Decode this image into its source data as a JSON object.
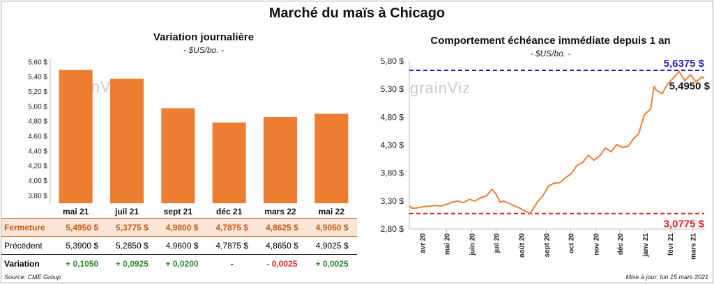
{
  "title": "Marché du maïs à Chicago",
  "left": {
    "subtitle": "Variation journalière",
    "unit": "- $US/bo. -",
    "bar_color": "#ed7d31",
    "ytick_labels": [
      "3,80 $",
      "4,00 $",
      "4,20 $",
      "4,40 $",
      "4,60 $",
      "4,80 $",
      "5,00 $",
      "5,20 $",
      "5,40 $",
      "5,60 $"
    ],
    "table": {
      "row_labels": {
        "close": "Fermeture",
        "prev": "Précédent",
        "var": "Variation"
      },
      "close": [
        "5,4950 $",
        "5,3775 $",
        "4,9800 $",
        "4,7875 $",
        "4,8625 $",
        "4,9050 $"
      ],
      "prev": [
        "5,3900 $",
        "5,2850 $",
        "4,9600 $",
        "4,7875 $",
        "4,8650 $",
        "4,9025 $"
      ],
      "var": [
        "+ 0,1050",
        "+ 0,0925",
        "+ 0,0200",
        "-",
        "- 0,0025",
        "+ 0,0025"
      ],
      "var_sign": [
        "pos",
        "pos",
        "pos",
        "zero",
        "neg",
        "pos"
      ]
    }
  },
  "right": {
    "subtitle": "Comportement  échéance immédiate depuis 1 an",
    "unit": "- $US/bo. -",
    "line_color": "#ed7d31",
    "high_label": "5,6375 $",
    "low_label": "3,0775 $",
    "last_label": "5,4950 $",
    "high_color": "#2020c0",
    "low_color": "#e02020",
    "ytick_labels": [
      "2,80 $",
      "3,30 $",
      "3,80 $",
      "4,30 $",
      "4,80 $",
      "5,30 $",
      "5,80 $"
    ],
    "xtick_labels": [
      "avr 20",
      "mai 20",
      "juin 20",
      "juil 20",
      "août 20",
      "sept 20",
      "oct 20",
      "nov 20",
      "déc 20",
      "janv 21",
      "févr 21",
      "mars 21"
    ]
  },
  "watermark": "grainViz",
  "footer": {
    "source": "Source: CME Group",
    "updated": "Mise à jour: lun 15 mars 2021"
  },
  "chart_data": [
    {
      "type": "bar",
      "title": "Variation journalière",
      "categories": [
        "mai 21",
        "juil 21",
        "sept 21",
        "déc 21",
        "mars 22",
        "mai 22"
      ],
      "values": [
        5.495,
        5.3775,
        4.98,
        4.7875,
        4.8625,
        4.905
      ],
      "ylim": [
        3.7,
        5.65
      ],
      "yticks": [
        3.8,
        4.0,
        4.2,
        4.4,
        4.6,
        4.8,
        5.0,
        5.2,
        5.4,
        5.6
      ],
      "grid": false
    },
    {
      "type": "line",
      "title": "Comportement  échéance immédiate depuis 1 an",
      "x": [
        "2020-03-16",
        "2020-03-20",
        "2020-03-27",
        "2020-04-03",
        "2020-04-10",
        "2020-04-17",
        "2020-04-24",
        "2020-05-01",
        "2020-05-08",
        "2020-05-15",
        "2020-05-22",
        "2020-05-29",
        "2020-06-05",
        "2020-06-12",
        "2020-06-19",
        "2020-06-26",
        "2020-07-01",
        "2020-07-06",
        "2020-07-10",
        "2020-07-17",
        "2020-07-24",
        "2020-07-31",
        "2020-08-07",
        "2020-08-12",
        "2020-08-14",
        "2020-08-21",
        "2020-08-28",
        "2020-09-04",
        "2020-09-11",
        "2020-09-18",
        "2020-09-25",
        "2020-10-02",
        "2020-10-09",
        "2020-10-16",
        "2020-10-23",
        "2020-10-30",
        "2020-11-06",
        "2020-11-13",
        "2020-11-20",
        "2020-11-27",
        "2020-12-04",
        "2020-12-11",
        "2020-12-18",
        "2020-12-24",
        "2020-12-31",
        "2021-01-08",
        "2021-01-12",
        "2021-01-15",
        "2021-01-22",
        "2021-01-29",
        "2021-02-05",
        "2021-02-12",
        "2021-02-19",
        "2021-02-26",
        "2021-03-05",
        "2021-03-12",
        "2021-03-15"
      ],
      "values": [
        3.21,
        3.17,
        3.18,
        3.2,
        3.21,
        3.22,
        3.21,
        3.24,
        3.28,
        3.3,
        3.27,
        3.33,
        3.3,
        3.36,
        3.39,
        3.51,
        3.43,
        3.28,
        3.3,
        3.26,
        3.21,
        3.17,
        3.11,
        3.08,
        3.12,
        3.28,
        3.4,
        3.57,
        3.62,
        3.63,
        3.72,
        3.79,
        3.94,
        3.99,
        4.12,
        4.03,
        4.11,
        4.25,
        4.18,
        4.31,
        4.26,
        4.28,
        4.42,
        4.5,
        4.84,
        4.95,
        5.35,
        5.28,
        5.22,
        5.4,
        5.5,
        5.62,
        5.45,
        5.56,
        5.43,
        5.52,
        5.495
      ],
      "ylim": [
        2.8,
        5.8
      ],
      "yticks": [
        2.8,
        3.3,
        3.8,
        4.3,
        4.8,
        5.3,
        5.8
      ],
      "high": 5.6375,
      "low": 3.0775,
      "last": 5.495,
      "grid": false
    }
  ]
}
